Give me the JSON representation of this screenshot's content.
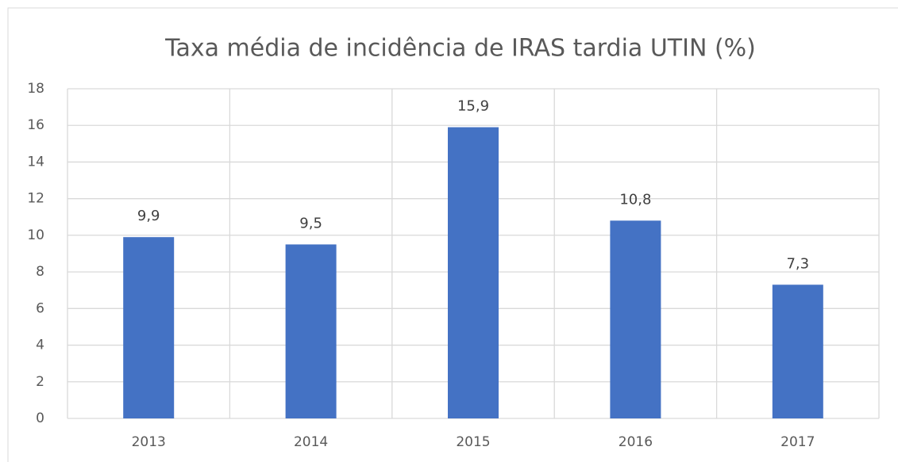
{
  "chart_data": {
    "type": "bar",
    "title": "Taxa média de incidência de IRAS tardia UTIN (%)",
    "categories": [
      "2013",
      "2014",
      "2015",
      "2016",
      "2017"
    ],
    "values": [
      9.9,
      9.5,
      15.9,
      10.8,
      7.3
    ],
    "value_labels": [
      "9,9",
      "9,5",
      "15,9",
      "10,8",
      "7,3"
    ],
    "color": "#4472c4",
    "ylim": [
      0,
      18
    ],
    "yticks": [
      0,
      2,
      4,
      6,
      8,
      10,
      12,
      14,
      16,
      18
    ],
    "grid": true
  }
}
